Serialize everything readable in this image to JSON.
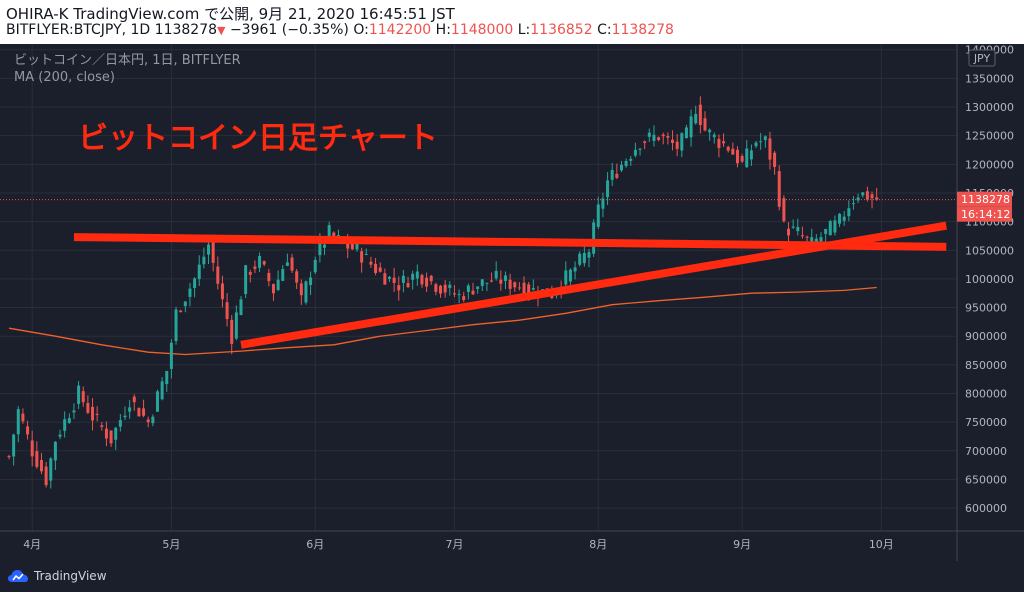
{
  "header": {
    "title": "OHIRA-K TradingView.com で公開, 9月 21, 2020 16:45:51 JST",
    "symbol": "BITFLYER:BTCJPY, 1D",
    "last": "1138278",
    "change": "−3961 (−0.35%)",
    "o_label": "O:",
    "o_value": "1142200",
    "h_label": "H:",
    "h_value": "1148000",
    "l_label": "L:",
    "l_value": "1136852",
    "c_label": "C:",
    "c_value": "1138278"
  },
  "legend": {
    "symbol_line": "ビットコイン／日本円, 1日, BITFLYER",
    "ma_line": "MA (200, close)"
  },
  "annotation": "ビットコイン日足チャート",
  "currency_badge": "JPY",
  "price_label": "1138278",
  "countdown_label": "16:14:12",
  "footer": {
    "brand": "TradingView"
  },
  "colors": {
    "up": "#26a69a",
    "down": "#ef5350",
    "ma": "#f0622a",
    "trendline": "#ff2a10",
    "annotation": "#ff2a10",
    "price_label_bg": "#ef5350"
  },
  "icons": {
    "logo": "tradingview-cloud-icon"
  },
  "chart_data": {
    "type": "candlestick",
    "y_ticks": [
      600000,
      650000,
      700000,
      750000,
      800000,
      850000,
      900000,
      950000,
      1000000,
      1050000,
      1100000,
      1150000,
      1200000,
      1250000,
      1300000,
      1350000,
      1400000
    ],
    "x_ticks": [
      {
        "label": "4月",
        "day": 5
      },
      {
        "label": "5月",
        "day": 35
      },
      {
        "label": "6月",
        "day": 66
      },
      {
        "label": "7月",
        "day": 96
      },
      {
        "label": "8月",
        "day": 127
      },
      {
        "label": "9月",
        "day": 158
      },
      {
        "label": "10月",
        "day": 188
      }
    ],
    "ylim": [
      560000,
      1410000
    ],
    "xlim": [
      0,
      208
    ],
    "current_price": 1138278,
    "anchors": [
      [
        0,
        690000
      ],
      [
        2,
        770000
      ],
      [
        5,
        700000
      ],
      [
        8,
        650000
      ],
      [
        10,
        720000
      ],
      [
        15,
        800000
      ],
      [
        18,
        760000
      ],
      [
        22,
        720000
      ],
      [
        26,
        790000
      ],
      [
        30,
        750000
      ],
      [
        34,
        840000
      ],
      [
        36,
        940000
      ],
      [
        40,
        1000000
      ],
      [
        43,
        1060000
      ],
      [
        46,
        960000
      ],
      [
        48,
        900000
      ],
      [
        51,
        1010000
      ],
      [
        54,
        1030000
      ],
      [
        57,
        980000
      ],
      [
        60,
        1040000
      ],
      [
        63,
        960000
      ],
      [
        66,
        1040000
      ],
      [
        69,
        1080000
      ],
      [
        72,
        1060000
      ],
      [
        75,
        1050000
      ],
      [
        80,
        1010000
      ],
      [
        84,
        990000
      ],
      [
        88,
        1010000
      ],
      [
        92,
        990000
      ],
      [
        97,
        970000
      ],
      [
        101,
        990000
      ],
      [
        105,
        1000000
      ],
      [
        109,
        990000
      ],
      [
        113,
        980000
      ],
      [
        117,
        975000
      ],
      [
        121,
        1010000
      ],
      [
        125,
        1050000
      ],
      [
        127,
        1120000
      ],
      [
        129,
        1170000
      ],
      [
        132,
        1200000
      ],
      [
        136,
        1240000
      ],
      [
        140,
        1250000
      ],
      [
        144,
        1230000
      ],
      [
        146,
        1250000
      ],
      [
        148,
        1300000
      ],
      [
        150,
        1260000
      ],
      [
        153,
        1240000
      ],
      [
        155,
        1230000
      ],
      [
        158,
        1200000
      ],
      [
        161,
        1240000
      ],
      [
        163,
        1240000
      ],
      [
        165,
        1190000
      ],
      [
        167,
        1090000
      ],
      [
        170,
        1080000
      ],
      [
        173,
        1060000
      ],
      [
        176,
        1080000
      ],
      [
        179,
        1100000
      ],
      [
        181,
        1130000
      ],
      [
        183,
        1150000
      ],
      [
        185,
        1145000
      ],
      [
        187,
        1138278
      ]
    ],
    "ma_points": [
      [
        0,
        914000
      ],
      [
        10,
        900000
      ],
      [
        20,
        885000
      ],
      [
        30,
        872000
      ],
      [
        38,
        868000
      ],
      [
        50,
        874000
      ],
      [
        60,
        880000
      ],
      [
        70,
        885000
      ],
      [
        80,
        900000
      ],
      [
        90,
        910000
      ],
      [
        100,
        920000
      ],
      [
        110,
        928000
      ],
      [
        120,
        940000
      ],
      [
        130,
        955000
      ],
      [
        140,
        962000
      ],
      [
        150,
        968000
      ],
      [
        160,
        975000
      ],
      [
        170,
        977000
      ],
      [
        180,
        980000
      ],
      [
        187,
        985000
      ]
    ],
    "annotation_lines": [
      {
        "name": "resistance",
        "from": [
          14,
          1073000
        ],
        "to": [
          202,
          1056000
        ]
      },
      {
        "name": "support",
        "from": [
          50,
          885000
        ],
        "to": [
          202,
          1093000
        ]
      }
    ]
  }
}
